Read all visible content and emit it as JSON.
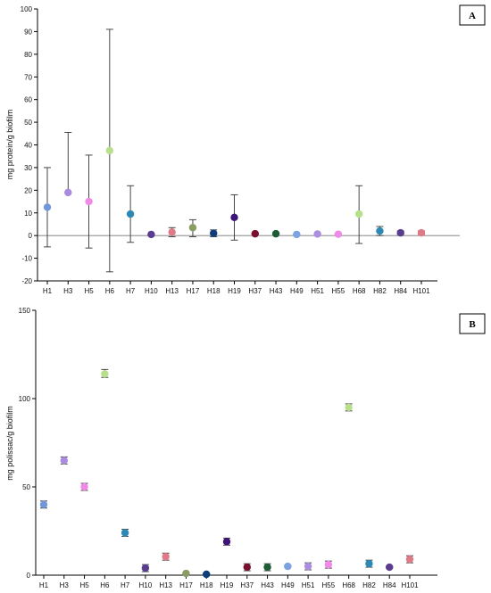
{
  "chart_data": [
    {
      "type": "scatter",
      "panel_label": "A",
      "ylabel": "mg protein/g biofilm",
      "ylim": [
        -20,
        100
      ],
      "yticks": [
        -20,
        -10,
        0,
        10,
        20,
        30,
        40,
        50,
        60,
        70,
        80,
        90,
        100
      ],
      "reference_line": 0,
      "categories": [
        "H1",
        "H3",
        "H5",
        "H6",
        "H7",
        "H10",
        "H13",
        "H17",
        "H18",
        "H19",
        "H37",
        "H43",
        "H49",
        "H51",
        "H55",
        "H68",
        "H82",
        "H84",
        "H101"
      ],
      "values": [
        12.5,
        19,
        15,
        37.5,
        9.5,
        0.5,
        1.5,
        3.5,
        1,
        8,
        0.8,
        0.8,
        0.5,
        0.7,
        0.6,
        9.5,
        2,
        1.2,
        1.2
      ],
      "error_low": [
        -5,
        19,
        -5.5,
        -16,
        -3,
        0.2,
        -0.5,
        -0.5,
        -0.5,
        -2,
        0.5,
        0.5,
        0.3,
        0.5,
        0.4,
        -3.5,
        0,
        0.5,
        0.5
      ],
      "error_high": [
        30,
        45.5,
        35.5,
        91,
        22,
        0.8,
        3.5,
        7,
        2.5,
        18,
        1.1,
        1.1,
        0.7,
        0.9,
        0.8,
        22,
        4,
        2,
        2
      ],
      "colors": [
        "#6f97d9",
        "#a98be0",
        "#ef8ae8",
        "#b8e08c",
        "#2c88b5",
        "#5a3d8f",
        "#e07a86",
        "#8a9c63",
        "#0f3d7a",
        "#3b1578",
        "#7a0f2e",
        "#1e5c35",
        "#7aa3e0",
        "#ab8ee0",
        "#ef8ae8",
        "#b8e08c",
        "#2c88b5",
        "#5a3d8f",
        "#e07a86"
      ]
    },
    {
      "type": "scatter",
      "panel_label": "B",
      "ylabel": "mg polissac/g biofilm",
      "ylim": [
        0,
        150
      ],
      "yticks": [
        0,
        50,
        100,
        150
      ],
      "categories": [
        "H1",
        "H3",
        "H5",
        "H6",
        "H7",
        "H10",
        "H13",
        "H17",
        "H18",
        "H19",
        "H37",
        "H43",
        "H49",
        "H51",
        "H55",
        "H68",
        "H82",
        "H84",
        "H101"
      ],
      "values": [
        40,
        65,
        50,
        114,
        24,
        4,
        10.5,
        1,
        0.5,
        19,
        4.5,
        4.5,
        5,
        5,
        6,
        95,
        6.5,
        4.5,
        9
      ],
      "error_low": [
        38,
        63,
        48,
        112,
        22,
        2,
        8.5,
        0.5,
        0.3,
        17,
        2.5,
        2.5,
        4.5,
        3,
        4,
        93,
        4.5,
        4,
        7
      ],
      "error_high": [
        42,
        67,
        52,
        116.5,
        26,
        6,
        12.5,
        1.5,
        0.7,
        21,
        6.5,
        6.5,
        5.5,
        7,
        8,
        97,
        8.5,
        5,
        11
      ],
      "colors": [
        "#6f97d9",
        "#a98be0",
        "#ef8ae8",
        "#b8e08c",
        "#2c88b5",
        "#5a3d8f",
        "#e07a86",
        "#8a9c63",
        "#0f3d7a",
        "#3b1578",
        "#7a0f2e",
        "#1e5c35",
        "#7aa3e0",
        "#ab8ee0",
        "#ef8ae8",
        "#b8e08c",
        "#2c88b5",
        "#5a3d8f",
        "#e07a86"
      ]
    }
  ]
}
